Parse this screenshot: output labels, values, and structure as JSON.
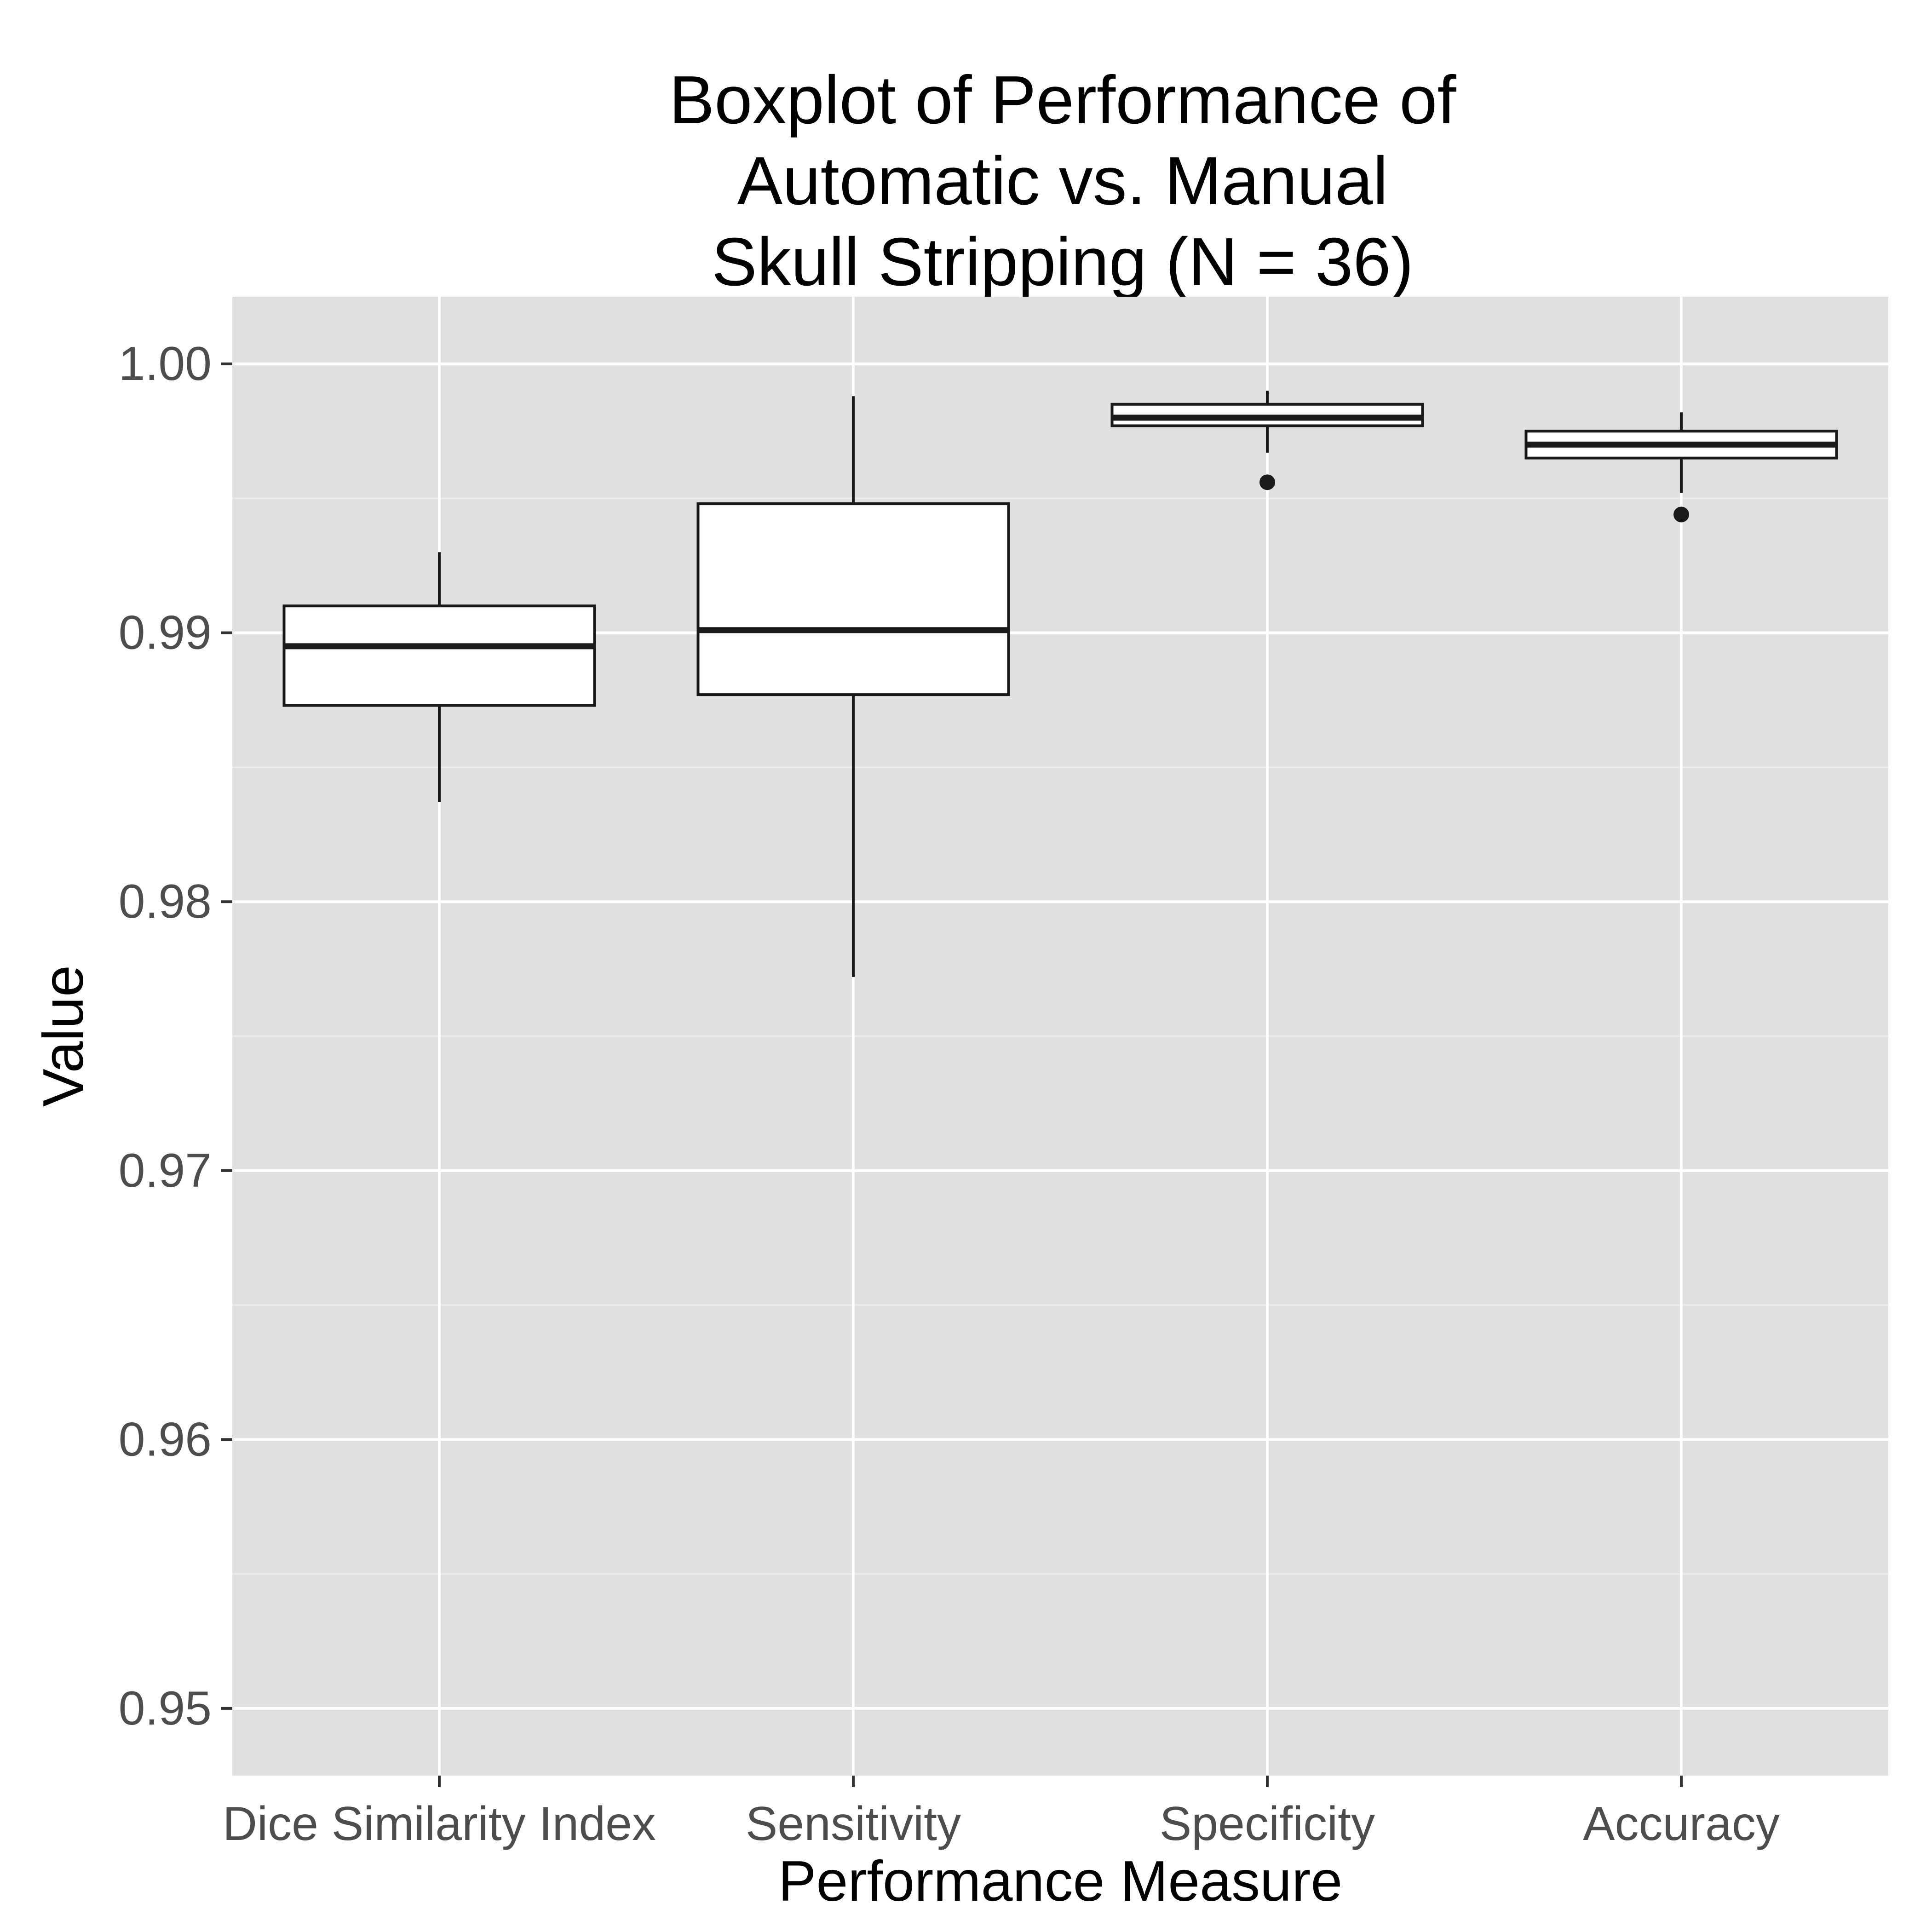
{
  "chart_data": {
    "type": "boxplot",
    "title_lines": [
      "Boxplot of Performance of",
      "Automatic vs. Manual",
      "Skull Stripping (N = 36)"
    ],
    "xlabel": "Performance Measure",
    "ylabel": "Value",
    "ylim": [
      0.9475,
      1.0025
    ],
    "yticks": [
      0.95,
      0.96,
      0.97,
      0.98,
      0.99,
      1.0
    ],
    "ytick_labels": [
      "0.95",
      "0.96",
      "0.97",
      "0.98",
      "0.99",
      "1.00"
    ],
    "categories": [
      "Dice Similarity Index",
      "Sensitivity",
      "Specificity",
      "Accuracy"
    ],
    "boxes": [
      {
        "category": "Dice Similarity Index",
        "whisker_low": 0.9837,
        "q1": 0.9873,
        "median": 0.9895,
        "q3": 0.991,
        "whisker_high": 0.993,
        "outliers": []
      },
      {
        "category": "Sensitivity",
        "whisker_low": 0.9772,
        "q1": 0.9877,
        "median": 0.9901,
        "q3": 0.9948,
        "whisker_high": 0.9988,
        "outliers": []
      },
      {
        "category": "Specificity",
        "whisker_low": 0.9967,
        "q1": 0.9977,
        "median": 0.998,
        "q3": 0.9985,
        "whisker_high": 0.999,
        "outliers": [
          0.9956
        ]
      },
      {
        "category": "Accuracy",
        "whisker_low": 0.9952,
        "q1": 0.9965,
        "median": 0.997,
        "q3": 0.9975,
        "whisker_high": 0.9982,
        "outliers": [
          0.9944
        ]
      }
    ],
    "grid": true,
    "legend": "none",
    "colors": {
      "panel_background": "#e0e0e0",
      "grid_major": "#ffffff",
      "grid_minor": "#ececec",
      "box_fill": "#ffffff",
      "box_stroke": "#1a1a1a",
      "tick_label": "#4d4d4d"
    }
  }
}
